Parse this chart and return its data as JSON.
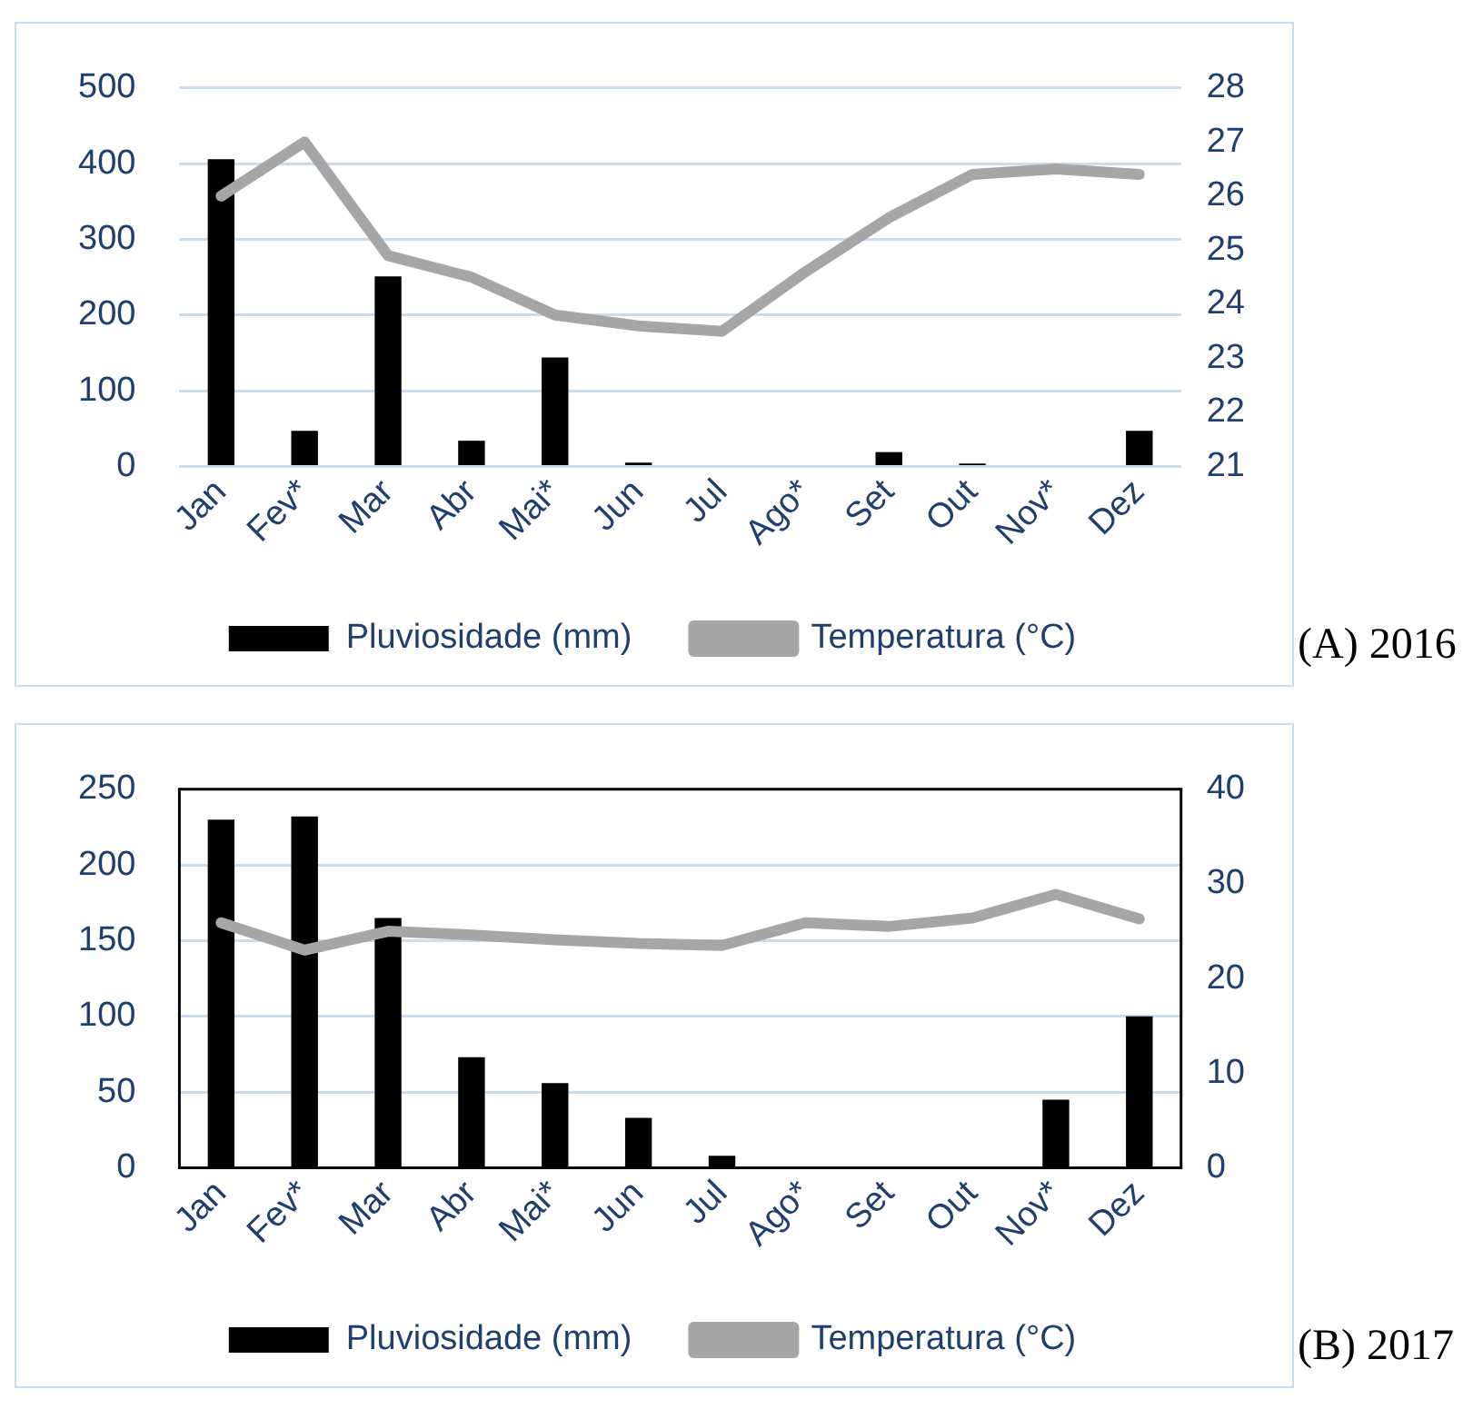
{
  "chart_data": [
    {
      "type": "bar",
      "categories": [
        "Jan",
        "Fev*",
        "Mar",
        "Abr",
        "Mai*",
        "Jun",
        "Jul",
        "Ago*",
        "Set",
        "Out",
        "Nov*",
        "Dez"
      ],
      "series": [
        {
          "name": "Pluviosidade (mm)",
          "color": "#000000",
          "values": [
            406,
            47,
            251,
            34,
            144,
            5,
            0,
            0,
            19,
            4,
            0,
            47
          ]
        },
        {
          "name": "Temperatura (°C)",
          "type": "line",
          "axis": "y2",
          "color": "#a6a6a6",
          "values": [
            26.0,
            27.0,
            24.9,
            24.5,
            23.8,
            23.6,
            23.5,
            24.6,
            25.6,
            26.4,
            26.5,
            26.4
          ]
        }
      ],
      "ylim": [
        0,
        500
      ],
      "yticks": [
        0,
        100,
        200,
        300,
        400,
        500
      ],
      "y2lim": [
        21,
        28
      ],
      "y2ticks": [
        21,
        22,
        23,
        24,
        25,
        26,
        27,
        28
      ],
      "grid": "y",
      "legend": "bottom",
      "marker": "none",
      "annotations": [
        "(A) 2016"
      ]
    },
    {
      "type": "bar",
      "categories": [
        "Jan",
        "Fev*",
        "Mar",
        "Abr",
        "Mai*",
        "Jun",
        "Jul",
        "Ago*",
        "Set",
        "Out",
        "Nov*",
        "Dez"
      ],
      "series": [
        {
          "name": "Pluviosidade (mm)",
          "color": "#000000",
          "values": [
            230,
            232,
            165,
            73,
            56,
            33,
            8,
            0,
            0,
            0,
            45,
            100
          ]
        },
        {
          "name": "Temperatura (°C)",
          "type": "line",
          "axis": "y2",
          "color": "#a6a6a6",
          "values": [
            25.9,
            23.0,
            25.0,
            24.6,
            24.1,
            23.7,
            23.5,
            25.9,
            25.5,
            26.4,
            28.9,
            26.3
          ]
        }
      ],
      "ylim": [
        0,
        250
      ],
      "yticks": [
        0,
        50,
        100,
        150,
        200,
        250
      ],
      "y2lim": [
        0,
        40
      ],
      "y2ticks": [
        0,
        10,
        20,
        30,
        40
      ],
      "grid": "y",
      "legend": "bottom",
      "marker": "none",
      "annotations": [
        "(B) 2017"
      ]
    }
  ]
}
